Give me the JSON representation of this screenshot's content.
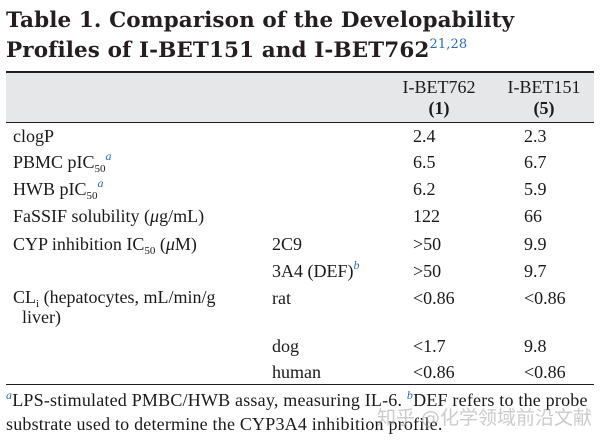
{
  "title": {
    "prefix": "Table 1. Comparison of the Developability Profiles of I-BET151 and I-BET762",
    "refs": "21,28"
  },
  "columns": [
    {
      "name": "I-BET762",
      "number": "(1)"
    },
    {
      "name": "I-BET151",
      "number": "(5)"
    }
  ],
  "rows": [
    {
      "label": "clogP",
      "sub": "",
      "values": [
        "2.4",
        "2.3"
      ]
    },
    {
      "label": "PBMC pIC50",
      "sub": "",
      "values": [
        "6.5",
        "6.7"
      ]
    },
    {
      "label": "HWB pIC50",
      "sub": "",
      "values": [
        "6.2",
        "5.9"
      ]
    },
    {
      "label": "FaSSIF solubility (μg/mL)",
      "sub": "",
      "values": [
        "122",
        "66"
      ]
    },
    {
      "label": "CYP inhibition IC50 (μM)",
      "sub": "2C9",
      "values": [
        ">50",
        "9.9"
      ]
    },
    {
      "label": "",
      "sub": "3A4 (DEF)",
      "values": [
        ">50",
        "9.7"
      ]
    },
    {
      "label": "CLi (hepatocytes, mL/min/g liver)",
      "sub": "rat",
      "values": [
        "<0.86",
        "<0.86"
      ]
    },
    {
      "label": "",
      "sub": "dog",
      "values": [
        "<1.7",
        "9.8"
      ]
    },
    {
      "label": "",
      "sub": "human",
      "values": [
        "<0.86",
        "<0.86"
      ]
    }
  ],
  "footnote_marks": {
    "a": "a",
    "b": "b"
  },
  "footnotes": {
    "a": "LPS-stimulated PMBC/HWB assay, measuring IL-6.",
    "b": "DEF refers to the probe substrate used to determine the CYP3A4 inhibition profile."
  },
  "watermark": "知乎 @化学领域前沿文献"
}
